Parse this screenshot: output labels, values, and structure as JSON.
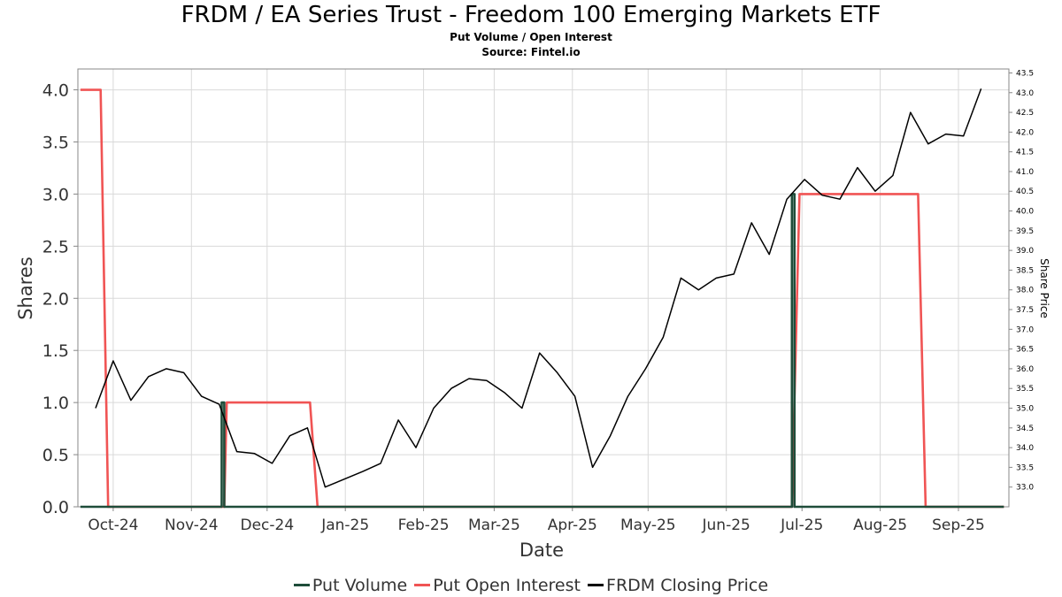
{
  "title": "FRDM / EA Series Trust - Freedom 100 Emerging Markets ETF",
  "subtitle": "Put Volume / Open Interest",
  "source": "Source: Fintel.io",
  "colors": {
    "put_volume": "#1f4d3a",
    "put_open_interest": "#f05454",
    "closing_price": "#000000",
    "grid": "#d9d9d9",
    "axis": "#888888"
  },
  "legend": [
    {
      "label": "Put Volume",
      "color": "#1f4d3a"
    },
    {
      "label": "Put Open Interest",
      "color": "#f05454"
    },
    {
      "label": "FRDM Closing Price",
      "color": "#000000"
    }
  ],
  "chart_data": {
    "type": "line",
    "xlabel": "Date",
    "ylabel": "Shares",
    "y2label": "Share Price",
    "x_ticks": [
      "Oct-24",
      "Nov-24",
      "Dec-24",
      "Jan-25",
      "Feb-25",
      "Mar-25",
      "Apr-25",
      "May-25",
      "Jun-25",
      "Jul-25",
      "Aug-25",
      "Sep-25"
    ],
    "x_range": [
      "2024-09-17",
      "2025-09-21"
    ],
    "ylim": [
      0,
      4.2
    ],
    "y_ticks": [
      "0.0",
      "0.5",
      "1.0",
      "1.5",
      "2.0",
      "2.5",
      "3.0",
      "3.5",
      "4.0"
    ],
    "y2lim": [
      32.5,
      43.6
    ],
    "y2_ticks": [
      "33.0",
      "33.5",
      "34.0",
      "34.5",
      "35.0",
      "35.5",
      "36.0",
      "36.5",
      "37.0",
      "37.5",
      "38.0",
      "38.5",
      "39.0",
      "39.5",
      "40.0",
      "40.5",
      "41.0",
      "41.5",
      "42.0",
      "42.5",
      "43.0",
      "43.5"
    ],
    "grid": true,
    "legend_position": "bottom",
    "series": [
      {
        "name": "Put Volume",
        "axis": "left",
        "points": [
          [
            "2024-09-18",
            0
          ],
          [
            "2024-11-13",
            0
          ],
          [
            "2024-11-13",
            1.0
          ],
          [
            "2024-11-14",
            1.0
          ],
          [
            "2024-11-14",
            0
          ],
          [
            "2025-06-27",
            0
          ],
          [
            "2025-06-27",
            3.0
          ],
          [
            "2025-06-28",
            3.0
          ],
          [
            "2025-06-28",
            0
          ],
          [
            "2025-09-19",
            0
          ]
        ]
      },
      {
        "name": "Put Open Interest",
        "axis": "left",
        "points": [
          [
            "2024-09-18",
            4.0
          ],
          [
            "2024-09-26",
            4.0
          ],
          [
            "2024-09-29",
            0
          ],
          [
            "2024-11-14",
            0
          ],
          [
            "2024-11-15",
            1.0
          ],
          [
            "2024-12-18",
            1.0
          ],
          [
            "2024-12-21",
            0
          ],
          [
            "2025-06-27",
            0
          ],
          [
            "2025-06-30",
            3.0
          ],
          [
            "2025-08-16",
            3.0
          ],
          [
            "2025-08-19",
            0
          ],
          [
            "2025-09-19",
            0
          ]
        ]
      },
      {
        "name": "FRDM Closing Price",
        "axis": "right",
        "points": [
          [
            "2024-09-24",
            35.0
          ],
          [
            "2024-10-01",
            36.2
          ],
          [
            "2024-10-08",
            35.2
          ],
          [
            "2024-10-15",
            35.8
          ],
          [
            "2024-10-22",
            36.0
          ],
          [
            "2024-10-29",
            35.9
          ],
          [
            "2024-11-05",
            35.3
          ],
          [
            "2024-11-12",
            35.1
          ],
          [
            "2024-11-19",
            33.9
          ],
          [
            "2024-11-26",
            33.85
          ],
          [
            "2024-12-03",
            33.6
          ],
          [
            "2024-12-10",
            34.3
          ],
          [
            "2024-12-17",
            34.5
          ],
          [
            "2024-12-24",
            33.0
          ],
          [
            "2025-01-08",
            33.4
          ],
          [
            "2025-01-15",
            33.6
          ],
          [
            "2025-01-22",
            34.7
          ],
          [
            "2025-01-29",
            34.0
          ],
          [
            "2025-02-05",
            35.0
          ],
          [
            "2025-02-12",
            35.5
          ],
          [
            "2025-02-19",
            35.75
          ],
          [
            "2025-02-26",
            35.7
          ],
          [
            "2025-03-05",
            35.4
          ],
          [
            "2025-03-12",
            35.0
          ],
          [
            "2025-03-19",
            36.4
          ],
          [
            "2025-03-26",
            35.9
          ],
          [
            "2025-04-02",
            35.3
          ],
          [
            "2025-04-09",
            33.5
          ],
          [
            "2025-04-16",
            34.3
          ],
          [
            "2025-04-23",
            35.3
          ],
          [
            "2025-04-30",
            36.0
          ],
          [
            "2025-05-07",
            36.8
          ],
          [
            "2025-05-14",
            38.3
          ],
          [
            "2025-05-21",
            38.0
          ],
          [
            "2025-05-28",
            38.3
          ],
          [
            "2025-06-04",
            38.4
          ],
          [
            "2025-06-11",
            39.7
          ],
          [
            "2025-06-18",
            38.9
          ],
          [
            "2025-06-25",
            40.3
          ],
          [
            "2025-07-02",
            40.8
          ],
          [
            "2025-07-09",
            40.4
          ],
          [
            "2025-07-16",
            40.3
          ],
          [
            "2025-07-23",
            41.1
          ],
          [
            "2025-07-30",
            40.5
          ],
          [
            "2025-08-06",
            40.9
          ],
          [
            "2025-08-13",
            42.5
          ],
          [
            "2025-08-20",
            41.7
          ],
          [
            "2025-08-27",
            41.95
          ],
          [
            "2025-09-03",
            41.9
          ],
          [
            "2025-09-10",
            43.1
          ]
        ]
      }
    ]
  }
}
